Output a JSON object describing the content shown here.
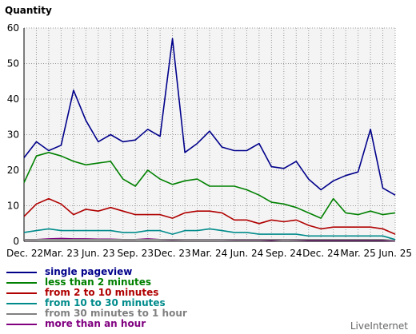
{
  "chart_data": {
    "type": "line",
    "title": "Quantity",
    "ylim": [
      0,
      60
    ],
    "y_ticks": [
      "0",
      "10",
      "20",
      "30",
      "40",
      "50",
      "60"
    ],
    "x_tick_labels": [
      "Dec. 22",
      "Mar. 23",
      "Jun. 23",
      "Sep. 23",
      "Dec. 23",
      "Mar. 24",
      "Jun. 24",
      "Sep. 24",
      "Dec. 24",
      "Mar. 25",
      "Jun. 25"
    ],
    "grid": true,
    "legend_position": "bottom-left",
    "series": [
      {
        "name": "single pageview",
        "color": "#00008b",
        "values": [
          23.5,
          28,
          25.5,
          27,
          42.5,
          34,
          28,
          30,
          28,
          28.5,
          31.5,
          29.5,
          57,
          25,
          27.5,
          31,
          26.5,
          25.5,
          25.5,
          27.5,
          21,
          20.5,
          22.5,
          17.5,
          14.5,
          17,
          18.5,
          19.5,
          31.5,
          15,
          13
        ]
      },
      {
        "name": "less than 2 minutes",
        "color": "#008000",
        "values": [
          16.5,
          24,
          25,
          24,
          22.5,
          21.5,
          22,
          22.5,
          17.5,
          15.5,
          20,
          17.5,
          16,
          17,
          17.5,
          15.5,
          15.5,
          15.5,
          14.5,
          13,
          11,
          10.5,
          9.5,
          8,
          6.5,
          12,
          8,
          7.5,
          8.5,
          7.5,
          8
        ]
      },
      {
        "name": "from 2 to 10 minutes",
        "color": "#b00000",
        "values": [
          7,
          10.5,
          12,
          10.5,
          7.5,
          9,
          8.5,
          9.5,
          8.5,
          7.5,
          7.5,
          7.5,
          6.5,
          8,
          8.5,
          8.5,
          8,
          6,
          6,
          5,
          6,
          5.5,
          6,
          4.5,
          3.5,
          4,
          4,
          4,
          4,
          3.5,
          2
        ]
      },
      {
        "name": "from 10 to 30 minutes",
        "color": "#008b8b",
        "values": [
          2.5,
          3,
          3.5,
          3,
          3,
          3,
          3,
          3,
          2.5,
          2.5,
          3,
          3,
          2,
          3,
          3,
          3.5,
          3,
          2.5,
          2.5,
          2,
          2,
          2,
          2,
          1.5,
          1.5,
          1.5,
          1.5,
          1.5,
          1.5,
          1.5,
          0.5
        ]
      },
      {
        "name": "from 30 minutes to 1 hour",
        "color": "#808080",
        "values": [
          0.5,
          0.5,
          0.5,
          0.5,
          0.5,
          0.5,
          0.5,
          0.5,
          0.5,
          0.5,
          0.5,
          0.5,
          0.5,
          0.5,
          0.5,
          0.5,
          0.5,
          0.5,
          0.5,
          0.5,
          0.5,
          0.5,
          0.5,
          0.5,
          0.5,
          0.5,
          0.5,
          0.5,
          0.5,
          0.5,
          0.2
        ]
      },
      {
        "name": "more than an hour",
        "color": "#800080",
        "values": [
          0.5,
          0.5,
          0.7,
          0.8,
          0.7,
          0.7,
          0.6,
          0.6,
          0.5,
          0.5,
          0.7,
          0.5,
          0.4,
          0.5,
          0.5,
          0.5,
          0.5,
          0.4,
          0.4,
          0.4,
          0.3,
          0.5,
          0.4,
          0.3,
          0.3,
          0.3,
          0.3,
          0.3,
          0.3,
          0.3,
          0.1
        ]
      }
    ]
  },
  "footer": {
    "brand": "LiveInternet"
  }
}
